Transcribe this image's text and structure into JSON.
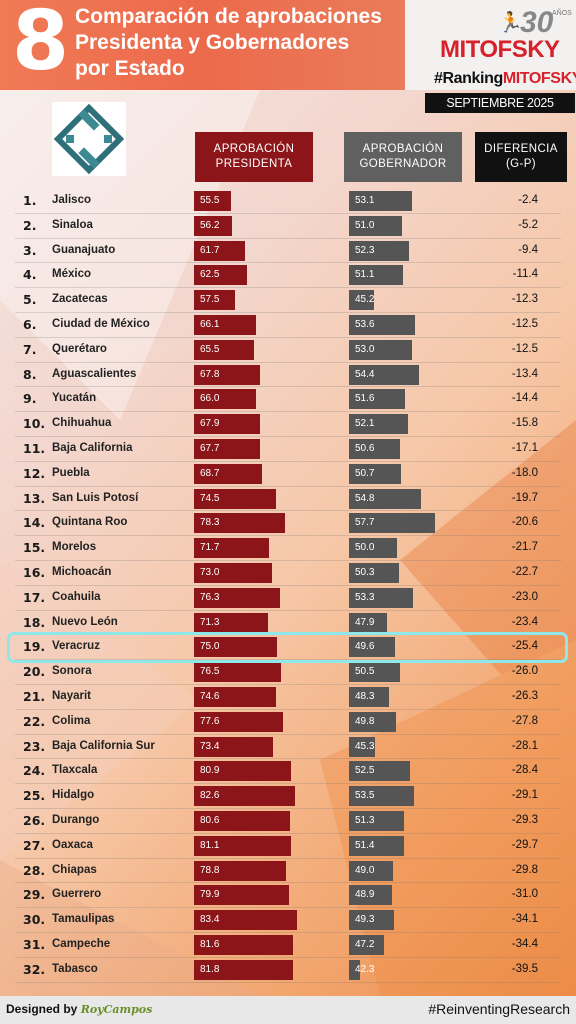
{
  "header": {
    "number": "8",
    "title_lines": [
      "Comparación de aprobaciones",
      "Presidenta y Gobernadores",
      "por Estado"
    ],
    "brand_30": "30",
    "brand_anos": "AÑOS",
    "brand_name": "MITOFSKY",
    "brand_tag_prefix": "#Ranking",
    "brand_tag_suffix": "MITOFSKY",
    "date": "SEPTIEMBRE 2025"
  },
  "columns": {
    "presidenta": "APROBACIÓN\nPRESIDENTA",
    "gobernador": "APROBACIÓN\nGOBERNADOR",
    "diferencia": "DIFERENCIA\n(G-P)"
  },
  "highlight_rank": 19,
  "colors": {
    "president_bar": "#8b1518",
    "governor_bar": "#555555",
    "highlight": "#8ee8ea",
    "brand_red": "#d8212a"
  },
  "chart_data": {
    "type": "table",
    "columns": [
      "APROBACIÓN PRESIDENTA",
      "APROBACIÓN GOBERNADOR",
      "DIFERENCIA (G-P)"
    ],
    "rows": [
      {
        "rank": "1.",
        "state": "Jalisco",
        "presidenta": 55.5,
        "gobernador": 53.1,
        "diferencia": "-2.4"
      },
      {
        "rank": "2.",
        "state": "Sinaloa",
        "presidenta": 56.2,
        "gobernador": 51.0,
        "diferencia": "-5.2"
      },
      {
        "rank": "3.",
        "state": "Guanajuato",
        "presidenta": 61.7,
        "gobernador": 52.3,
        "diferencia": "-9.4"
      },
      {
        "rank": "4.",
        "state": "México",
        "presidenta": 62.5,
        "gobernador": 51.1,
        "diferencia": "-11.4"
      },
      {
        "rank": "5.",
        "state": "Zacatecas",
        "presidenta": 57.5,
        "gobernador": 45.2,
        "diferencia": "-12.3"
      },
      {
        "rank": "6.",
        "state": "Ciudad de México",
        "presidenta": 66.1,
        "gobernador": 53.6,
        "diferencia": "-12.5"
      },
      {
        "rank": "7.",
        "state": "Querétaro",
        "presidenta": 65.5,
        "gobernador": 53.0,
        "diferencia": "-12.5"
      },
      {
        "rank": "8.",
        "state": "Aguascalientes",
        "presidenta": 67.8,
        "gobernador": 54.4,
        "diferencia": "-13.4"
      },
      {
        "rank": "9.",
        "state": "Yucatán",
        "presidenta": 66.0,
        "gobernador": 51.6,
        "diferencia": "-14.4"
      },
      {
        "rank": "10.",
        "state": "Chihuahua",
        "presidenta": 67.9,
        "gobernador": 52.1,
        "diferencia": "-15.8"
      },
      {
        "rank": "11.",
        "state": "Baja California",
        "presidenta": 67.7,
        "gobernador": 50.6,
        "diferencia": "-17.1"
      },
      {
        "rank": "12.",
        "state": "Puebla",
        "presidenta": 68.7,
        "gobernador": 50.7,
        "diferencia": "-18.0"
      },
      {
        "rank": "13.",
        "state": "San Luis Potosí",
        "presidenta": 74.5,
        "gobernador": 54.8,
        "diferencia": "-19.7"
      },
      {
        "rank": "14.",
        "state": "Quintana Roo",
        "presidenta": 78.3,
        "gobernador": 57.7,
        "diferencia": "-20.6"
      },
      {
        "rank": "15.",
        "state": "Morelos",
        "presidenta": 71.7,
        "gobernador": 50.0,
        "diferencia": "-21.7"
      },
      {
        "rank": "16.",
        "state": "Michoacán",
        "presidenta": 73.0,
        "gobernador": 50.3,
        "diferencia": "-22.7"
      },
      {
        "rank": "17.",
        "state": "Coahuila",
        "presidenta": 76.3,
        "gobernador": 53.3,
        "diferencia": "-23.0"
      },
      {
        "rank": "18.",
        "state": "Nuevo León",
        "presidenta": 71.3,
        "gobernador": 47.9,
        "diferencia": "-23.4"
      },
      {
        "rank": "19.",
        "state": "Veracruz",
        "presidenta": 75.0,
        "gobernador": 49.6,
        "diferencia": "-25.4"
      },
      {
        "rank": "20.",
        "state": "Sonora",
        "presidenta": 76.5,
        "gobernador": 50.5,
        "diferencia": "-26.0"
      },
      {
        "rank": "21.",
        "state": "Nayarit",
        "presidenta": 74.6,
        "gobernador": 48.3,
        "diferencia": "-26.3"
      },
      {
        "rank": "22.",
        "state": "Colima",
        "presidenta": 77.6,
        "gobernador": 49.8,
        "diferencia": "-27.8"
      },
      {
        "rank": "23.",
        "state": "Baja California Sur",
        "presidenta": 73.4,
        "gobernador": 45.3,
        "diferencia": "-28.1"
      },
      {
        "rank": "24.",
        "state": "Tlaxcala",
        "presidenta": 80.9,
        "gobernador": 52.5,
        "diferencia": "-28.4"
      },
      {
        "rank": "25.",
        "state": "Hidalgo",
        "presidenta": 82.6,
        "gobernador": 53.5,
        "diferencia": "-29.1"
      },
      {
        "rank": "26.",
        "state": "Durango",
        "presidenta": 80.6,
        "gobernador": 51.3,
        "diferencia": "-29.3"
      },
      {
        "rank": "27.",
        "state": "Oaxaca",
        "presidenta": 81.1,
        "gobernador": 51.4,
        "diferencia": "-29.7"
      },
      {
        "rank": "28.",
        "state": "Chiapas",
        "presidenta": 78.8,
        "gobernador": 49.0,
        "diferencia": "-29.8"
      },
      {
        "rank": "29.",
        "state": "Guerrero",
        "presidenta": 79.9,
        "gobernador": 48.9,
        "diferencia": "-31.0"
      },
      {
        "rank": "30.",
        "state": "Tamaulipas",
        "presidenta": 83.4,
        "gobernador": 49.3,
        "diferencia": "-34.1"
      },
      {
        "rank": "31.",
        "state": "Campeche",
        "presidenta": 81.6,
        "gobernador": 47.2,
        "diferencia": "-34.4"
      },
      {
        "rank": "32.",
        "state": "Tabasco",
        "presidenta": 81.8,
        "gobernador": 42.3,
        "diferencia": "-39.5"
      }
    ]
  },
  "footer": {
    "designed_by": "Designed by",
    "designer": "RoyCampos",
    "hashtag": "#ReinventingResearch"
  }
}
